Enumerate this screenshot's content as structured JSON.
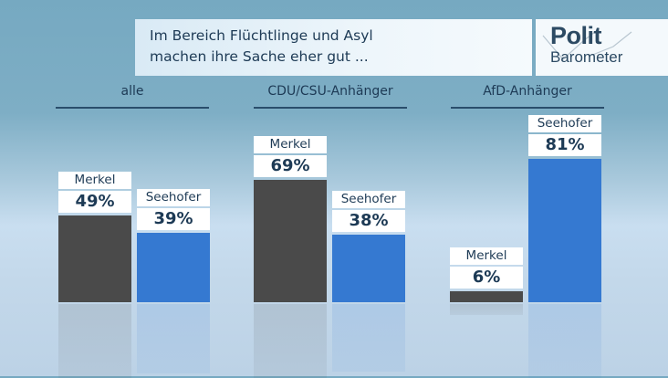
{
  "header": {
    "title_line1": "Im Bereich Flüchtlinge und Asyl",
    "title_line2": "machen ihre Sache eher gut ...",
    "logo_top": "Polit",
    "logo_bottom": "Barometer"
  },
  "colors": {
    "merkel": "#4a4a4a",
    "seehofer": "#3579d1"
  },
  "chart_data": {
    "type": "bar",
    "title": "Im Bereich Flüchtlinge und Asyl machen ihre Sache eher gut ...",
    "categories": [
      "alle",
      "CDU/CSU-Anhänger",
      "AfD-Anhänger"
    ],
    "series": [
      {
        "name": "Merkel",
        "values": [
          49,
          69,
          6
        ],
        "labels": [
          "49%",
          "69%",
          "6%"
        ]
      },
      {
        "name": "Seehofer",
        "values": [
          39,
          38,
          81
        ],
        "labels": [
          "39%",
          "38%",
          "81%"
        ]
      }
    ],
    "unit": "%",
    "ylim": [
      0,
      100
    ],
    "grid": false,
    "xlabel": "",
    "ylabel": ""
  }
}
